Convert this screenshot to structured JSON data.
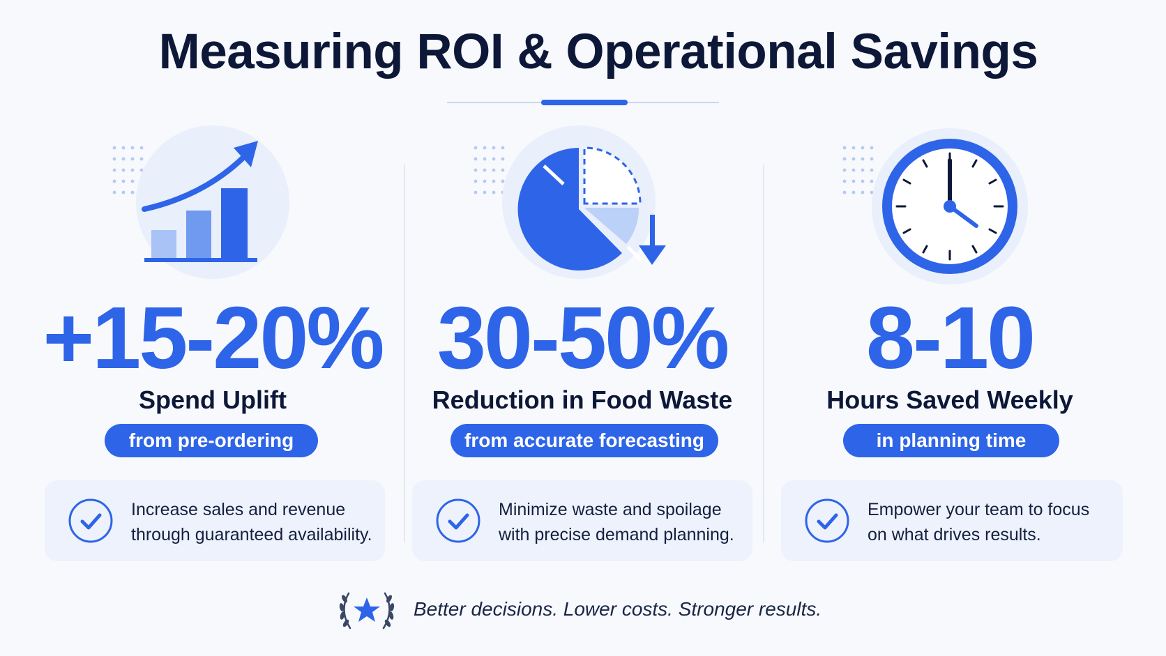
{
  "title": "Measuring ROI & Operational Savings",
  "colors": {
    "accent": "#2e64e8",
    "accent_light": "#a9c3f7",
    "bg_circle": "#e9effb",
    "text_dark": "#0d1838"
  },
  "metrics": [
    {
      "icon": "growth-chart-icon",
      "value": "+15-20%",
      "label": "Spend Uplift",
      "pill": "from pre-ordering",
      "card_line1": "Increase sales and revenue",
      "card_line2": "through guaranteed availability."
    },
    {
      "icon": "pie-chart-decrease-icon",
      "value": "30-50%",
      "label": "Reduction in Food Waste",
      "pill": "from accurate forecasting",
      "card_line1": "Minimize waste and spoilage",
      "card_line2": "with precise demand planning."
    },
    {
      "icon": "clock-icon",
      "value": "8-10",
      "label": "Hours Saved Weekly",
      "pill": "in planning time",
      "card_line1": "Empower your team to focus",
      "card_line2": "on what drives results."
    }
  ],
  "footer": {
    "icon": "laurel-star-icon",
    "text": "Better decisions. Lower costs. Stronger results."
  }
}
